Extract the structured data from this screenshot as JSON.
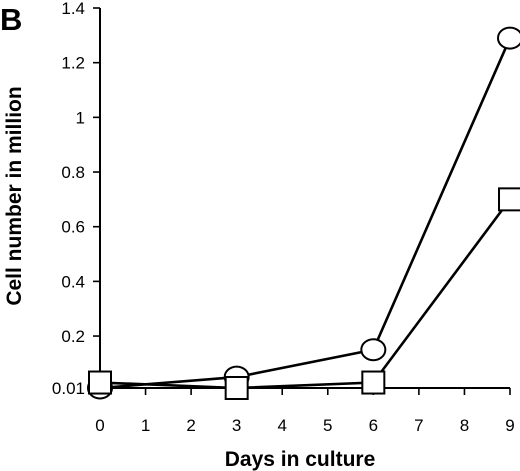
{
  "panel_label": "B",
  "chart_data": {
    "type": "line",
    "title": "",
    "xlabel": "Days in culture",
    "ylabel": "Cell number in million",
    "x_ticks": [
      0,
      1,
      2,
      3,
      4,
      5,
      6,
      7,
      8,
      9
    ],
    "x_tick_labels": [
      "0",
      "1",
      "2",
      "3",
      "4",
      "5",
      "6",
      "7",
      "8",
      "9"
    ],
    "y_ticks": [
      0.01,
      0.2,
      0.4,
      0.6,
      0.8,
      1,
      1.2,
      1.4
    ],
    "y_tick_labels": [
      "0.01",
      "0.2",
      "0.4",
      "0.6",
      "0.8",
      "1",
      "1.2",
      "1.4"
    ],
    "xlim": [
      0,
      9
    ],
    "ylim": [
      0.01,
      1.4
    ],
    "grid": false,
    "legend": "none",
    "series": [
      {
        "marker": "circle",
        "x": [
          0,
          3,
          6,
          9
        ],
        "y": [
          0.01,
          0.05,
          0.15,
          1.29
        ]
      },
      {
        "marker": "square",
        "x": [
          0,
          3,
          6,
          9
        ],
        "y": [
          0.03,
          0.01,
          0.03,
          0.7
        ]
      }
    ]
  }
}
